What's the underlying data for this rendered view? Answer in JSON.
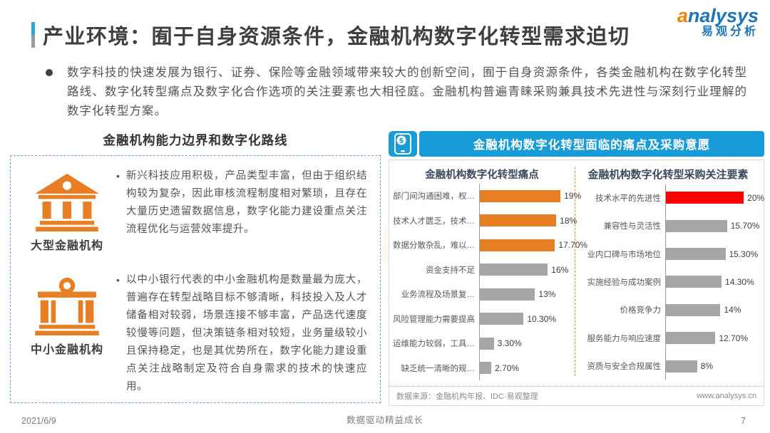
{
  "header": {
    "title": "产业环境：囿于自身资源条件，金融机构数字化转型需求迫切",
    "logo": {
      "brand": "analysys",
      "brand_cn": "易观分析"
    }
  },
  "intro": {
    "text": "数字科技的快速发展为银行、证券、保险等金融领域带来较大的创新空间，囿于自身资源条件，各类金融机构在数字化转型路线、数字化转型痛点及数字化合作选项的关注要素也大相径庭。金融机构普遍青睐采购兼具技术先进性与深刻行业理解的数字化转型方案。"
  },
  "left_panel": {
    "heading": "金融机构能力边界和数字化路线",
    "items": [
      {
        "icon": "bank-large-icon",
        "label": "大型金融机构",
        "bullet": "•",
        "text": "新兴科技应用积极，产品类型丰富，但由于组织结构较为复杂，因此审核流程制度相对繁琐，且存在大量历史遗留数据信息，数字化能力建设重点关注流程优化与运营效率提升。"
      },
      {
        "icon": "bank-small-icon",
        "label": "中小金融机构",
        "bullet": "•",
        "text": "以中小银行代表的中小金融机构是数量最为庞大，普遍存在转型战略目标不够清晰，科技投入及人才储备相对较弱，场景连接不够丰富，产品迭代速度较慢等问题，但决策链条相对较短，业务量级较小且保持稳定，也是其优势所在，数字化能力建设重点关注战略制定及符合自身需求的技术的快速应用。"
      }
    ]
  },
  "right_panel": {
    "header_label": "金融机构数字化转型面临的痛点及采购意愿",
    "header_icon": "mobile-payment-icon",
    "source": "数据来源：金融机构年报、IDC·易观整理",
    "website": "www.analysys.cn"
  },
  "chart_data": [
    {
      "type": "bar",
      "orientation": "horizontal",
      "title": "金融机构数字化转型痛点",
      "categories": [
        "部门间沟通困难，权…",
        "技术人才匮乏，技术…",
        "数据分散杂乱，难以…",
        "资金支持不足",
        "业务流程及场景复…",
        "风险管理能力需要提高",
        "运维能力较弱，工具…",
        "缺乏统一清晰的规…"
      ],
      "values": [
        19,
        18,
        17.7,
        16,
        13,
        10.3,
        3.3,
        2.7
      ],
      "value_labels": [
        "19%",
        "18%",
        "17.70%",
        "16%",
        "13%",
        "10.30%",
        "3.30%",
        "2.70%"
      ],
      "bar_colors": [
        "#e87e23",
        "#e87e23",
        "#e87e23",
        "#a6a6a6",
        "#a6a6a6",
        "#a6a6a6",
        "#a6a6a6",
        "#a6a6a6"
      ],
      "xlabel": "",
      "ylabel": "",
      "xlim": [
        0,
        22
      ],
      "grid": false,
      "legend": false
    },
    {
      "type": "bar",
      "orientation": "horizontal",
      "title": "金融机构数字化转型采购关注要素",
      "categories": [
        "技术水平的先进性",
        "兼容性与灵活性",
        "业内口碑与市场地位",
        "实施经验与成功案例",
        "价格竞争力",
        "服务能力与响应速度",
        "资质与安全合规属性"
      ],
      "values": [
        20,
        15.7,
        15.3,
        14.3,
        14,
        12.7,
        8
      ],
      "value_labels": [
        "20%",
        "15.70%",
        "15.30%",
        "14.30%",
        "14%",
        "12.70%",
        "8%"
      ],
      "bar_colors": [
        "#ff0000",
        "#a6a6a6",
        "#a6a6a6",
        "#a6a6a6",
        "#a6a6a6",
        "#a6a6a6",
        "#a6a6a6"
      ],
      "xlabel": "",
      "ylabel": "",
      "xlim": [
        0,
        24
      ],
      "grid": false,
      "legend": false
    }
  ],
  "colors": {
    "accent_blue": "#189cd8",
    "accent_orange": "#e87e23",
    "accent_red": "#ff0000",
    "bar_gray": "#a6a6a6",
    "brand_blue": "#1b75bb",
    "brand_orange": "#f08300"
  },
  "watermark": {
    "text1": "易观分析",
    "text2": "易观分析"
  },
  "footer": {
    "date": "2021/6/9",
    "center": "数据驱动精益成长",
    "page": "7"
  }
}
